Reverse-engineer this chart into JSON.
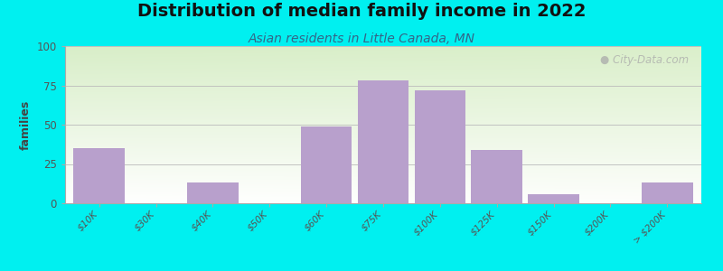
{
  "title": "Distribution of median family income in 2022",
  "subtitle": "Asian residents in Little Canada, MN",
  "ylabel": "families",
  "categories": [
    "$10K",
    "$30K",
    "$40K",
    "$50K",
    "$60K",
    "$75K",
    "$100K",
    "$125K",
    "$150K",
    "$200K",
    "> $200K"
  ],
  "values": [
    35,
    0,
    13,
    0,
    49,
    78,
    72,
    34,
    6,
    0,
    13
  ],
  "bar_color": "#b8a0cc",
  "bar_edge_color": "#b8a0cc",
  "ylim": [
    0,
    100
  ],
  "yticks": [
    0,
    25,
    50,
    75,
    100
  ],
  "background_color": "#00f0f0",
  "plot_bg_top_left": "#d8eec8",
  "plot_bg_top_right": "#e8f8d8",
  "plot_bg_bottom": "#ffffff",
  "grid_color": "#bbbbbb",
  "title_fontsize": 14,
  "subtitle_fontsize": 10,
  "watermark": "City-Data.com"
}
